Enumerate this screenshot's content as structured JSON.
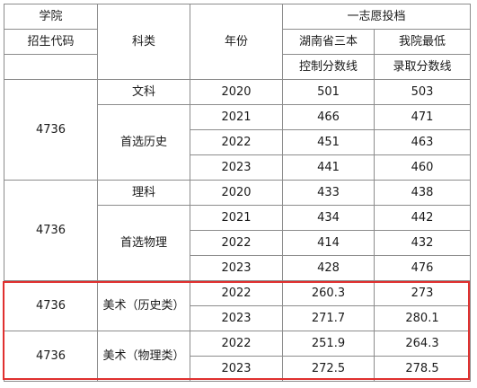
{
  "header": {
    "school_label": "学院",
    "code_label": "招生代码",
    "subject_label": "科类",
    "year_label": "年份",
    "first_choice_label": "一志愿投档",
    "line1_label_a": "湖南省三本",
    "line1_label_b": "控制分数线",
    "line2_label_a": "我院最低",
    "line2_label_b": "录取分数线"
  },
  "groups": [
    {
      "code": "4736",
      "subjects": [
        {
          "name": "文科",
          "rows": [
            {
              "year": "2020",
              "control": "501",
              "min": "503"
            }
          ]
        },
        {
          "name": "首选历史",
          "rows": [
            {
              "year": "2021",
              "control": "466",
              "min": "471"
            },
            {
              "year": "2022",
              "control": "451",
              "min": "463"
            },
            {
              "year": "2023",
              "control": "441",
              "min": "460"
            }
          ]
        }
      ]
    },
    {
      "code": "4736",
      "subjects": [
        {
          "name": "理科",
          "rows": [
            {
              "year": "2020",
              "control": "433",
              "min": "438"
            }
          ]
        },
        {
          "name": "首选物理",
          "rows": [
            {
              "year": "2021",
              "control": "434",
              "min": "442"
            },
            {
              "year": "2022",
              "control": "414",
              "min": "432"
            },
            {
              "year": "2023",
              "control": "428",
              "min": "476"
            }
          ]
        }
      ]
    },
    {
      "code": "4736",
      "subjects": [
        {
          "name": "美术（历史类）",
          "rows": [
            {
              "year": "2022",
              "control": "260.3",
              "min": "273"
            },
            {
              "year": "2023",
              "control": "271.7",
              "min": "280.1"
            }
          ]
        }
      ]
    },
    {
      "code": "4736",
      "subjects": [
        {
          "name": "美术（物理类）",
          "rows": [
            {
              "year": "2022",
              "control": "251.9",
              "min": "264.3"
            },
            {
              "year": "2023",
              "control": "272.5",
              "min": "278.5"
            }
          ]
        }
      ]
    }
  ],
  "highlight_color": "#e0302f"
}
